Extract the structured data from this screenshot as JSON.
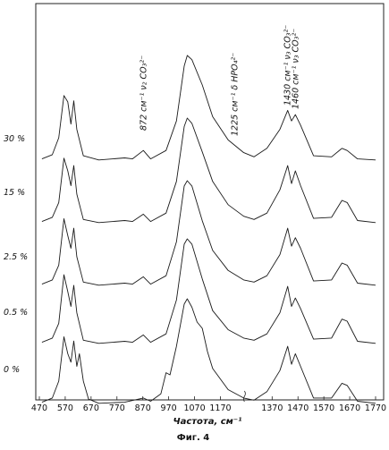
{
  "chart_data": {
    "type": "line",
    "title": "",
    "xlabel": "Частота, см⁻¹",
    "ylabel": "",
    "caption": "Фиг. 4",
    "x_ticks": [
      470,
      570,
      670,
      770,
      870,
      970,
      1070,
      1170,
      1370,
      1470,
      1570,
      1670,
      1770
    ],
    "x_axis_break": "1270",
    "grid": false,
    "annotations": [
      {
        "text": "872 см⁻¹ ν₂ CO₃²⁻",
        "x": 872
      },
      {
        "text": "1225 см⁻¹ δ HPO₄²⁻",
        "x": 1225
      },
      {
        "text": "1430 см⁻¹ ν₃ CO₃²⁻",
        "x": 1430
      },
      {
        "text": "1460 см⁻¹ ν₃ CO₃²⁻",
        "x": 1460
      }
    ],
    "series": [
      {
        "name": "30 %",
        "points": [
          [
            480,
            0.02
          ],
          [
            520,
            0.06
          ],
          [
            545,
            0.22
          ],
          [
            565,
            0.62
          ],
          [
            580,
            0.56
          ],
          [
            592,
            0.35
          ],
          [
            603,
            0.57
          ],
          [
            615,
            0.3
          ],
          [
            640,
            0.05
          ],
          [
            700,
            0.01
          ],
          [
            800,
            0.03
          ],
          [
            830,
            0.02
          ],
          [
            872,
            0.1
          ],
          [
            900,
            0.02
          ],
          [
            960,
            0.1
          ],
          [
            1000,
            0.38
          ],
          [
            1030,
            0.9
          ],
          [
            1042,
            1.0
          ],
          [
            1060,
            0.96
          ],
          [
            1100,
            0.72
          ],
          [
            1140,
            0.42
          ],
          [
            1200,
            0.2
          ],
          [
            1260,
            0.08
          ],
          [
            1300,
            0.04
          ],
          [
            1350,
            0.12
          ],
          [
            1400,
            0.3
          ],
          [
            1430,
            0.48
          ],
          [
            1445,
            0.38
          ],
          [
            1460,
            0.44
          ],
          [
            1480,
            0.34
          ],
          [
            1530,
            0.05
          ],
          [
            1600,
            0.04
          ],
          [
            1640,
            0.12
          ],
          [
            1660,
            0.1
          ],
          [
            1700,
            0.02
          ],
          [
            1770,
            0.01
          ]
        ]
      },
      {
        "name": "15 %",
        "points": [
          [
            480,
            0.02
          ],
          [
            520,
            0.06
          ],
          [
            545,
            0.2
          ],
          [
            565,
            0.62
          ],
          [
            580,
            0.5
          ],
          [
            592,
            0.36
          ],
          [
            603,
            0.55
          ],
          [
            615,
            0.28
          ],
          [
            640,
            0.04
          ],
          [
            700,
            0.01
          ],
          [
            800,
            0.03
          ],
          [
            830,
            0.02
          ],
          [
            872,
            0.09
          ],
          [
            900,
            0.02
          ],
          [
            960,
            0.1
          ],
          [
            1000,
            0.4
          ],
          [
            1030,
            0.92
          ],
          [
            1042,
            1.0
          ],
          [
            1060,
            0.95
          ],
          [
            1100,
            0.68
          ],
          [
            1140,
            0.4
          ],
          [
            1200,
            0.18
          ],
          [
            1260,
            0.07
          ],
          [
            1300,
            0.04
          ],
          [
            1350,
            0.1
          ],
          [
            1400,
            0.32
          ],
          [
            1430,
            0.55
          ],
          [
            1445,
            0.38
          ],
          [
            1460,
            0.5
          ],
          [
            1480,
            0.36
          ],
          [
            1530,
            0.05
          ],
          [
            1600,
            0.06
          ],
          [
            1640,
            0.22
          ],
          [
            1660,
            0.2
          ],
          [
            1700,
            0.03
          ],
          [
            1770,
            0.01
          ]
        ]
      },
      {
        "name": "2.5 %",
        "points": [
          [
            480,
            0.02
          ],
          [
            520,
            0.06
          ],
          [
            545,
            0.2
          ],
          [
            565,
            0.64
          ],
          [
            580,
            0.48
          ],
          [
            592,
            0.36
          ],
          [
            603,
            0.55
          ],
          [
            615,
            0.28
          ],
          [
            640,
            0.04
          ],
          [
            700,
            0.01
          ],
          [
            800,
            0.03
          ],
          [
            830,
            0.02
          ],
          [
            872,
            0.09
          ],
          [
            900,
            0.02
          ],
          [
            960,
            0.1
          ],
          [
            1000,
            0.42
          ],
          [
            1030,
            0.95
          ],
          [
            1042,
            1.0
          ],
          [
            1060,
            0.95
          ],
          [
            1100,
            0.62
          ],
          [
            1140,
            0.34
          ],
          [
            1200,
            0.15
          ],
          [
            1260,
            0.06
          ],
          [
            1300,
            0.04
          ],
          [
            1350,
            0.1
          ],
          [
            1400,
            0.3
          ],
          [
            1430,
            0.55
          ],
          [
            1445,
            0.38
          ],
          [
            1460,
            0.46
          ],
          [
            1480,
            0.36
          ],
          [
            1530,
            0.05
          ],
          [
            1600,
            0.06
          ],
          [
            1640,
            0.22
          ],
          [
            1660,
            0.2
          ],
          [
            1700,
            0.03
          ],
          [
            1770,
            0.01
          ]
        ]
      },
      {
        "name": "0.5 %",
        "points": [
          [
            480,
            0.02
          ],
          [
            520,
            0.06
          ],
          [
            545,
            0.2
          ],
          [
            565,
            0.66
          ],
          [
            580,
            0.5
          ],
          [
            592,
            0.36
          ],
          [
            603,
            0.56
          ],
          [
            615,
            0.3
          ],
          [
            640,
            0.04
          ],
          [
            700,
            0.01
          ],
          [
            800,
            0.03
          ],
          [
            830,
            0.02
          ],
          [
            872,
            0.09
          ],
          [
            900,
            0.02
          ],
          [
            960,
            0.1
          ],
          [
            1000,
            0.42
          ],
          [
            1030,
            0.95
          ],
          [
            1042,
            1.0
          ],
          [
            1060,
            0.95
          ],
          [
            1100,
            0.62
          ],
          [
            1140,
            0.32
          ],
          [
            1200,
            0.14
          ],
          [
            1260,
            0.06
          ],
          [
            1300,
            0.04
          ],
          [
            1350,
            0.1
          ],
          [
            1400,
            0.3
          ],
          [
            1430,
            0.55
          ],
          [
            1445,
            0.36
          ],
          [
            1460,
            0.44
          ],
          [
            1480,
            0.34
          ],
          [
            1530,
            0.05
          ],
          [
            1600,
            0.06
          ],
          [
            1640,
            0.24
          ],
          [
            1660,
            0.22
          ],
          [
            1700,
            0.03
          ],
          [
            1770,
            0.01
          ]
        ]
      },
      {
        "name": "0 %",
        "points": [
          [
            480,
            0.02
          ],
          [
            520,
            0.06
          ],
          [
            545,
            0.22
          ],
          [
            565,
            0.64
          ],
          [
            580,
            0.48
          ],
          [
            592,
            0.4
          ],
          [
            603,
            0.6
          ],
          [
            615,
            0.36
          ],
          [
            625,
            0.48
          ],
          [
            640,
            0.22
          ],
          [
            660,
            0.05
          ],
          [
            700,
            0.01
          ],
          [
            800,
            0.02
          ],
          [
            872,
            0.06
          ],
          [
            900,
            0.03
          ],
          [
            940,
            0.1
          ],
          [
            960,
            0.3
          ],
          [
            975,
            0.28
          ],
          [
            1000,
            0.55
          ],
          [
            1030,
            0.95
          ],
          [
            1042,
            1.0
          ],
          [
            1060,
            0.92
          ],
          [
            1080,
            0.78
          ],
          [
            1100,
            0.72
          ],
          [
            1120,
            0.5
          ],
          [
            1140,
            0.34
          ],
          [
            1200,
            0.14
          ],
          [
            1260,
            0.06
          ],
          [
            1300,
            0.04
          ],
          [
            1350,
            0.12
          ],
          [
            1400,
            0.32
          ],
          [
            1430,
            0.55
          ],
          [
            1445,
            0.38
          ],
          [
            1460,
            0.48
          ],
          [
            1480,
            0.36
          ],
          [
            1530,
            0.06
          ],
          [
            1600,
            0.06
          ],
          [
            1640,
            0.2
          ],
          [
            1660,
            0.18
          ],
          [
            1700,
            0.03
          ],
          [
            1770,
            0.01
          ]
        ]
      }
    ]
  }
}
